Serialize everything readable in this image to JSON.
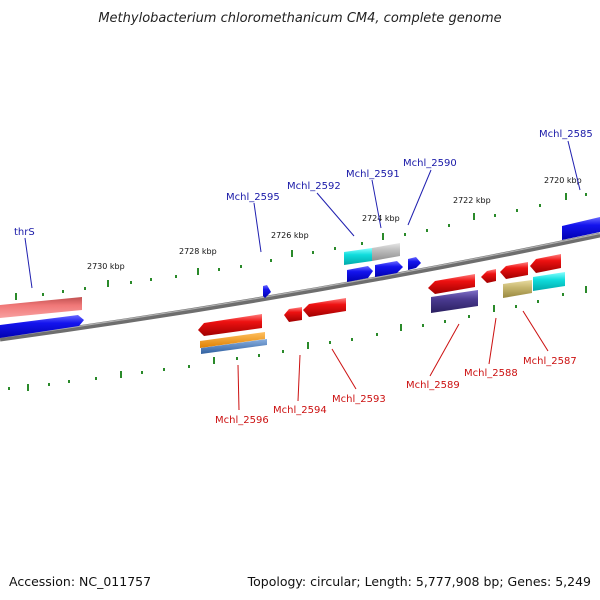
{
  "title": "Methylobacterium chloromethanicum CM4, complete genome",
  "accession": "Accession: NC_011757",
  "summary": "Topology: circular; Length: 5,777,908 bp; Genes: 5,249",
  "ticks": [
    "2730 kbp",
    "2728 kbp",
    "2726 kbp",
    "2724 kbp",
    "2722 kbp",
    "2720 kbp"
  ],
  "genes_forward": [
    "thrS",
    "Mchl_2595",
    "Mchl_2592",
    "Mchl_2591",
    "Mchl_2590",
    "Mchl_2585"
  ],
  "genes_reverse": [
    "Mchl_2596",
    "Mchl_2594",
    "Mchl_2593",
    "Mchl_2589",
    "Mchl_2588",
    "Mchl_2587"
  ],
  "colors": {
    "forward_cds": "#0a0ae6",
    "reverse_cds": "#ee1111",
    "rna_pink": "#f07070",
    "cyan": "#11dddd",
    "grey": "#bbbbbb",
    "orange": "#f59a10",
    "steel": "#5080c0",
    "slate": "#4a3a90",
    "khaki": "#c8b870",
    "backbone": "#8a8a8a",
    "tick": "#2a8a2a"
  }
}
